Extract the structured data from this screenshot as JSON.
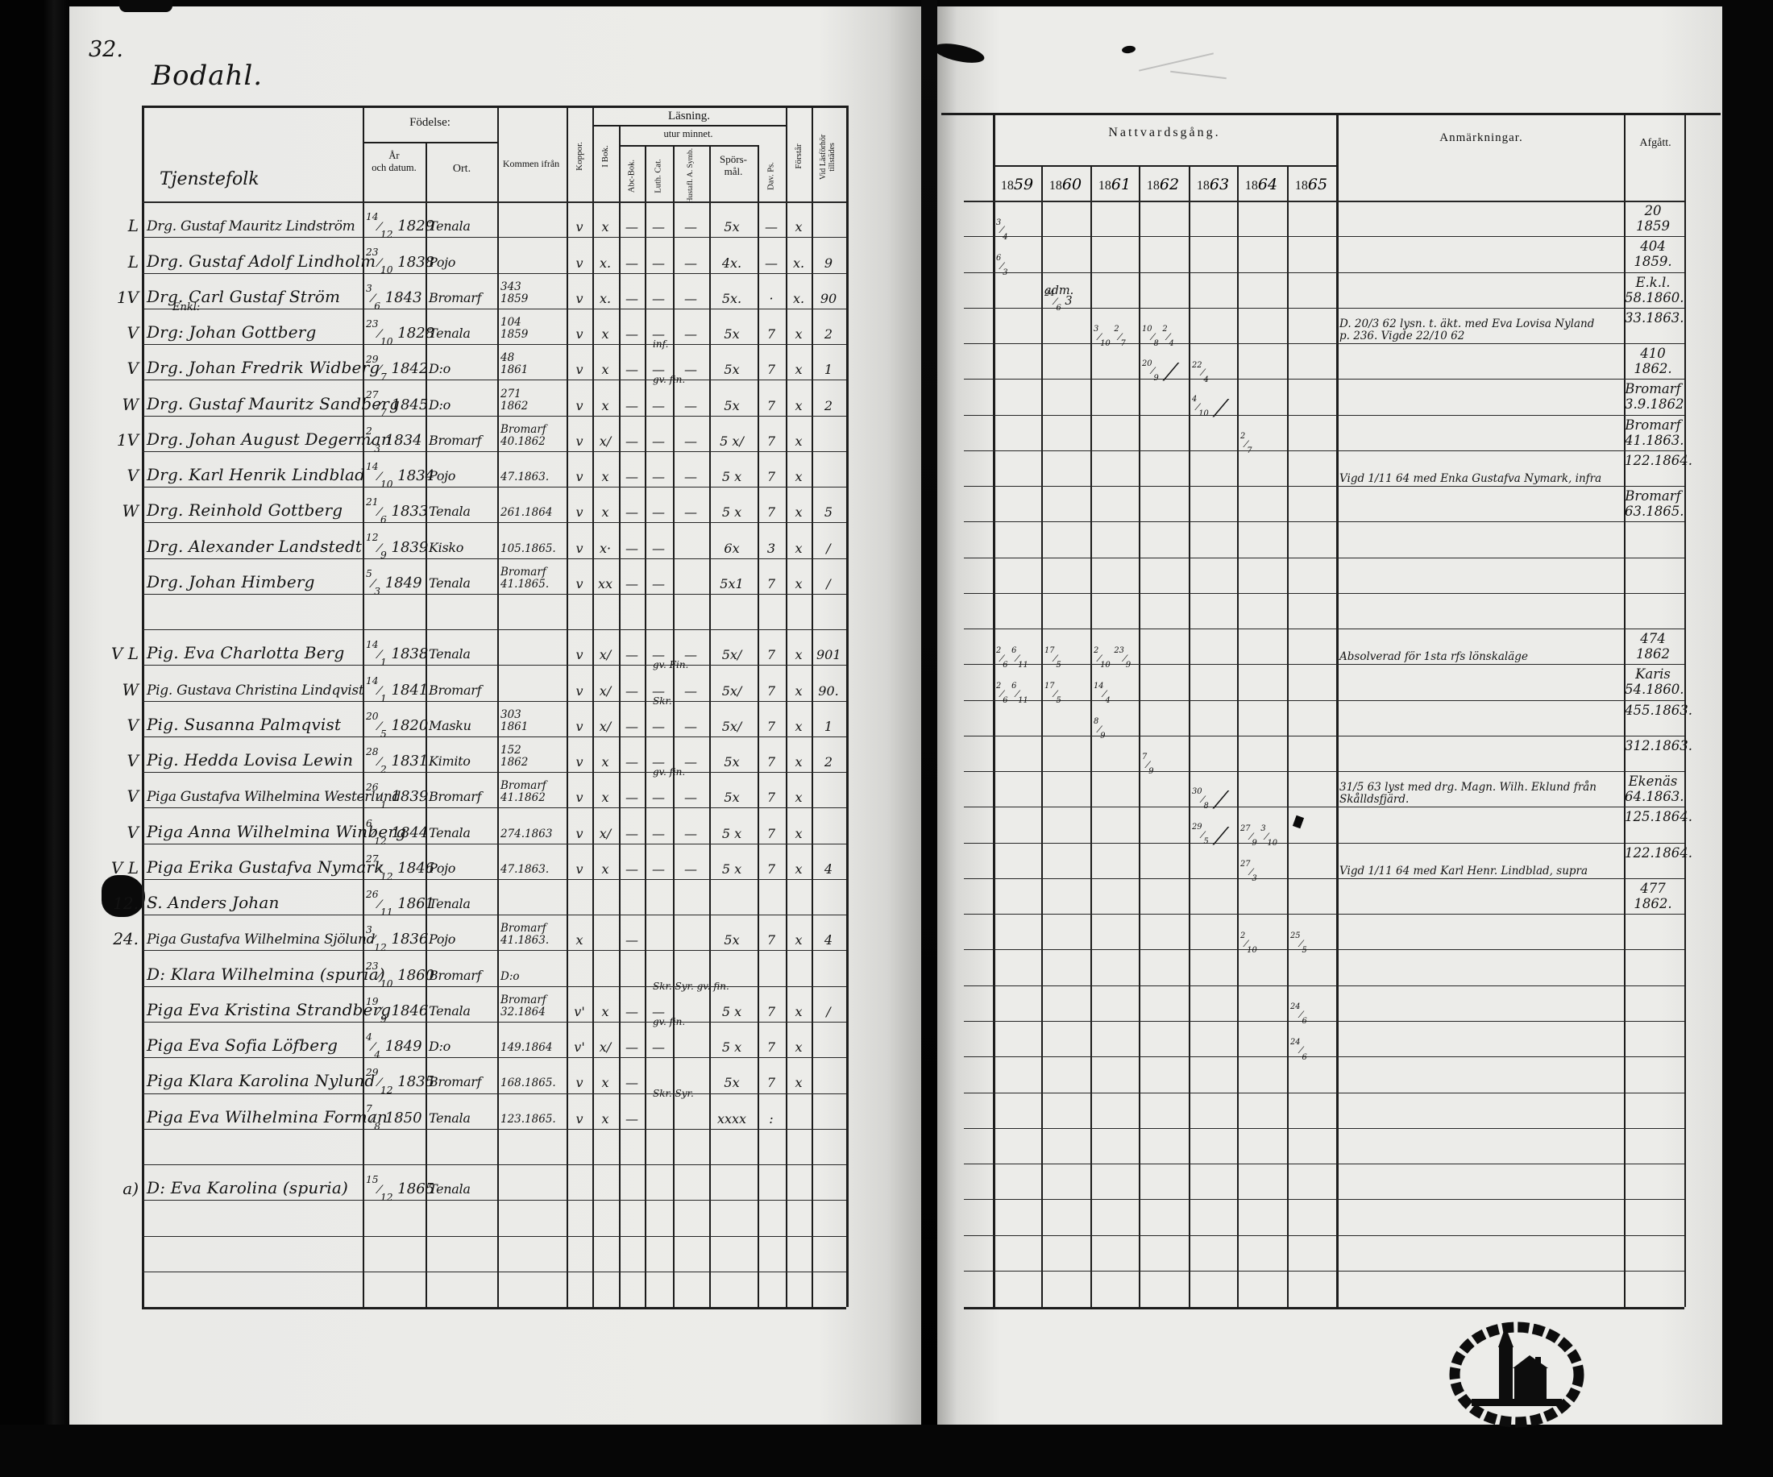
{
  "page": {
    "number": "32.",
    "title": "Bodahl.",
    "section_label": "Tjenstefolk"
  },
  "left_header": {
    "fodelse": "Födelse:",
    "ar1": "År",
    "ar2": "och datum.",
    "ort": "Ort.",
    "kommen": "Kommen ifrån",
    "koppor": "Koppor.",
    "ibok": "I Bok.",
    "lasning": "Läsning.",
    "utur": "utur minnet.",
    "abc": "Abc-Bok.",
    "cat": "Luth. Cat.",
    "symb": "Hustafl. A. Symb.",
    "spors1": "Spörs-",
    "spors2": "mål.",
    "dav": "Dav. Ps.",
    "forstar": "Förstår",
    "vid1": "Vid Läsförhör",
    "vid2": "tillstädes"
  },
  "right_header": {
    "nattvardsgang": "Nattvardsgång.",
    "years": [
      "1859",
      "1860",
      "1861",
      "1862",
      "1863",
      "1864",
      "1865"
    ],
    "anmarkningar": "Anmärkningar.",
    "afgatt": "Afgått."
  },
  "rows": [
    {
      "type": "person",
      "margin": "L",
      "name": "Drg. Gustaf Mauritz Lindström",
      "bday": "14",
      "bmon": "12",
      "byear": "1829",
      "ort": "Tenala",
      "from": [],
      "marks": {
        "kop": "v",
        "ibok": "x",
        "abc": "—",
        "cat": "—",
        "symb": "—",
        "spors": "5x",
        "dav": "—",
        "forst": "x",
        "vid": ""
      },
      "natt": [
        {
          "y": 0,
          "t": "3/4"
        }
      ],
      "anm": [],
      "afg": [
        "20",
        "1859"
      ]
    },
    {
      "type": "person",
      "margin": "L",
      "name": "Drg. Gustaf Adolf Lindholm",
      "bday": "23",
      "bmon": "10",
      "byear": "1838",
      "ort": "Pojo",
      "from": [],
      "marks": {
        "kop": "v",
        "ibok": "x.",
        "abc": "—",
        "cat": "—",
        "symb": "—",
        "spors": "4x.",
        "dav": "—",
        "forst": "x.",
        "vid": "9"
      },
      "natt": [
        {
          "y": 0,
          "t": "6/3"
        }
      ],
      "anm": [],
      "afg": [
        "404",
        "1859."
      ]
    },
    {
      "type": "person",
      "margin": "1V",
      "name": "Drg. Carl Gustaf Ström",
      "bday": "3",
      "bmon": "6",
      "byear": "1843",
      "ort": "Bromarf",
      "from": [
        "343",
        "1859"
      ],
      "marks": {
        "kop": "v",
        "ibok": "x.",
        "abc": "—",
        "cat": "—",
        "symb": "—",
        "spors": "5x.",
        "dav": "·",
        "forst": "x.",
        "vid": "90"
      },
      "natt": [
        {
          "y": 1,
          "t": "adm. 24/6 3"
        }
      ],
      "anm": [],
      "afg": [
        "E.k.l.",
        "58.1860."
      ]
    },
    {
      "type": "person",
      "margin": "V",
      "sup": "Enkl:",
      "name": "Drg: Johan Gottberg",
      "bday": "23",
      "bmon": "10",
      "byear": "1828",
      "ort": "Tenala",
      "from": [
        "104",
        "1859"
      ],
      "marks": {
        "kop": "v",
        "ibok": "x",
        "abc": "—",
        "cat": "—",
        "symb": "—",
        "spors": "5x",
        "dav": "7",
        "forst": "x",
        "vid": "2"
      },
      "natt": [
        {
          "y": 2,
          "t": "3/10 2/7"
        },
        {
          "y": 3,
          "t": "10/8 2/4"
        }
      ],
      "anm": [
        "D. 20/3 62 lysn. t. äkt. med Eva Lovisa Nyland",
        "p. 236. Vigde 22/10 62"
      ],
      "afg": [
        "33.1863."
      ]
    },
    {
      "type": "person",
      "margin": "V",
      "name": "Drg. Johan Fredrik Widberg",
      "bday": "29",
      "bmon": "7",
      "byear": "1842",
      "ort": "D:o",
      "from": [
        "48",
        "1861"
      ],
      "note": "inf.",
      "marks": {
        "kop": "v",
        "ibok": "x",
        "abc": "—",
        "cat": "—",
        "symb": "—",
        "spors": "5x",
        "dav": "7",
        "forst": "x",
        "vid": "1"
      },
      "natt": [
        {
          "y": 3,
          "t": "20/9 ⟋"
        },
        {
          "y": 4,
          "t": "22/4"
        }
      ],
      "anm": [],
      "afg": [
        "410",
        "1862."
      ]
    },
    {
      "type": "person",
      "margin": "W",
      "name": "Drg. Gustaf Mauritz Sandberg",
      "bday": "27",
      "bmon": "7",
      "byear": "1845",
      "ort": "D:o",
      "from": [
        "271",
        "1862"
      ],
      "note": "gv. fin.",
      "marks": {
        "kop": "v",
        "ibok": "x",
        "abc": "—",
        "cat": "—",
        "symb": "—",
        "spors": "5x",
        "dav": "7",
        "forst": "x",
        "vid": "2"
      },
      "natt": [
        {
          "y": 4,
          "t": "4/10 ⟋"
        }
      ],
      "anm": [],
      "afg": [
        "Bromarf",
        "3.9.1862"
      ]
    },
    {
      "type": "person",
      "margin": "1V",
      "name": "Drg. Johan August Degerman",
      "bday": "2",
      "bmon": "3",
      "byear": "1834",
      "ort": "Bromarf",
      "from": [
        "Bromarf",
        "40.1862"
      ],
      "marks": {
        "kop": "v",
        "ibok": "x/",
        "abc": "—",
        "cat": "—",
        "symb": "—",
        "spors": "5 x/",
        "dav": "7",
        "forst": "x",
        "vid": ""
      },
      "natt": [
        {
          "y": 5,
          "t": "2/7"
        }
      ],
      "anm": [],
      "afg": [
        "Bromarf",
        "41.1863."
      ]
    },
    {
      "type": "person",
      "margin": "V",
      "name": "Drg. Karl Henrik Lindblad",
      "bday": "14",
      "bmon": "10",
      "byear": "1834",
      "ort": "Pojo",
      "from": [
        "47.1863."
      ],
      "marks": {
        "kop": "v",
        "ibok": "x",
        "abc": "—",
        "cat": "—",
        "symb": "—",
        "spors": "5 x",
        "dav": "7",
        "forst": "x",
        "vid": ""
      },
      "natt": [],
      "anm": [
        "Vigd 1/11 64 med Enka Gustafva Nymark, infra"
      ],
      "afg": [
        "122.1864."
      ]
    },
    {
      "type": "person",
      "margin": "W",
      "name": "Drg. Reinhold Gottberg",
      "bday": "21",
      "bmon": "6",
      "byear": "1833",
      "ort": "Tenala",
      "from": [
        "261.1864"
      ],
      "marks": {
        "kop": "v",
        "ibok": "x",
        "abc": "—",
        "cat": "—",
        "symb": "—",
        "spors": "5 x",
        "dav": "7",
        "forst": "x",
        "vid": "5"
      },
      "natt": [],
      "anm": [],
      "afg": [
        "Bromarf",
        "63.1865."
      ]
    },
    {
      "type": "person",
      "margin": "",
      "name": "Drg. Alexander Landstedt",
      "bday": "12",
      "bmon": "9",
      "byear": "1839",
      "ort": "Kisko",
      "from": [
        "105.1865."
      ],
      "marks": {
        "kop": "v",
        "ibok": "x·",
        "abc": "—",
        "cat": "—",
        "symb": "",
        "spors": "6x",
        "dav": "3",
        "forst": "x",
        "vid": "/"
      },
      "natt": [],
      "anm": [],
      "afg": []
    },
    {
      "type": "person",
      "margin": "",
      "name": "Drg. Johan Himberg",
      "bday": "5",
      "bmon": "3",
      "byear": "1849",
      "ort": "Tenala",
      "from": [
        "Bromarf",
        "41.1865."
      ],
      "marks": {
        "kop": "v",
        "ibok": "xx",
        "abc": "—",
        "cat": "—",
        "symb": "",
        "spors": "5x1",
        "dav": "7",
        "forst": "x",
        "vid": "/"
      },
      "natt": [],
      "anm": [],
      "afg": []
    },
    {
      "type": "empty"
    },
    {
      "type": "person",
      "margin": "V L",
      "name": "Pig. Eva Charlotta Berg",
      "bday": "14",
      "bmon": "1",
      "byear": "1838",
      "ort": "Tenala",
      "from": [],
      "marks": {
        "kop": "v",
        "ibok": "x/",
        "abc": "—",
        "cat": "—",
        "symb": "—",
        "spors": "5x/",
        "dav": "7",
        "forst": "x",
        "vid": "901"
      },
      "natt": [
        {
          "y": 0,
          "t": "2/6 6/11"
        },
        {
          "y": 1,
          "t": "17/5"
        },
        {
          "y": 2,
          "t": "2/10 23/9"
        }
      ],
      "anm": [
        "Absolverad för 1sta rfs lönskaläge"
      ],
      "afg": [
        "474",
        "1862"
      ]
    },
    {
      "type": "person",
      "margin": "W",
      "name": "Pig. Gustava Christina Lindqvist",
      "bday": "14",
      "bmon": "1",
      "byear": "1841",
      "ort": "Bromarf",
      "from": [],
      "note": "gv. Fin.",
      "marks": {
        "kop": "v",
        "ibok": "x/",
        "abc": "—",
        "cat": "—",
        "symb": "—",
        "spors": "5x/",
        "dav": "7",
        "forst": "x",
        "vid": "90."
      },
      "natt": [
        {
          "y": 0,
          "t": "2/6 6/11"
        },
        {
          "y": 1,
          "t": "17/5"
        },
        {
          "y": 2,
          "t": "14/4"
        }
      ],
      "anm": [],
      "afg": [
        "Karis",
        "54.1860."
      ]
    },
    {
      "type": "person",
      "margin": "V",
      "name": "Pig. Susanna Palmqvist",
      "bday": "20",
      "bmon": "5",
      "byear": "1820",
      "ort": "Masku",
      "from": [
        "303",
        "1861"
      ],
      "note": "Skr.",
      "marks": {
        "kop": "v",
        "ibok": "x/",
        "abc": "—",
        "cat": "—",
        "symb": "—",
        "spors": "5x/",
        "dav": "7",
        "forst": "x",
        "vid": "1"
      },
      "natt": [
        {
          "y": 2,
          "t": "8/9"
        }
      ],
      "anm": [],
      "afg": [
        "455.1863."
      ]
    },
    {
      "type": "person",
      "margin": "V",
      "name": "Pig. Hedda Lovisa Lewin",
      "bday": "28",
      "bmon": "2",
      "byear": "1831",
      "ort": "Kimito",
      "from": [
        "152",
        "1862"
      ],
      "marks": {
        "kop": "v",
        "ibok": "x",
        "abc": "—",
        "cat": "—",
        "symb": "—",
        "spors": "5x",
        "dav": "7",
        "forst": "x",
        "vid": "2"
      },
      "natt": [
        {
          "y": 3,
          "t": "7/9"
        }
      ],
      "anm": [],
      "afg": [
        "312.1863."
      ]
    },
    {
      "type": "person",
      "margin": "V",
      "name": "Piga Gustafva Wilhelmina Westerlund",
      "bday": "26",
      "bmon": "1",
      "byear": "1839",
      "ort": "Bromarf",
      "from": [
        "Bromarf",
        "41.1862"
      ],
      "note": "gv. fin.",
      "marks": {
        "kop": "v",
        "ibok": "x",
        "abc": "—",
        "cat": "—",
        "symb": "—",
        "spors": "5x",
        "dav": "7",
        "forst": "x",
        "vid": ""
      },
      "natt": [
        {
          "y": 4,
          "t": "30/8 ⟋"
        }
      ],
      "anm": [
        "31/5 63 lyst med drg. Magn. Wilh. Eklund från",
        "Skålldsfjärd."
      ],
      "afg": [
        "Ekenäs",
        "64.1863."
      ]
    },
    {
      "type": "person",
      "margin": "V",
      "name": "Piga Anna Wilhelmina Winberg",
      "bday": "6",
      "bmon": "12",
      "byear": "1844",
      "ort": "Tenala",
      "from": [
        "274.1863"
      ],
      "marks": {
        "kop": "v",
        "ibok": "x/",
        "abc": "—",
        "cat": "—",
        "symb": "—",
        "spors": "5 x",
        "dav": "7",
        "forst": "x",
        "vid": ""
      },
      "natt": [
        {
          "y": 4,
          "t": "29/5 ⟋"
        },
        {
          "y": 5,
          "t": "27/9 3/10"
        }
      ],
      "anm": [],
      "afg": [
        "125.1864."
      ]
    },
    {
      "type": "person",
      "margin": "V L",
      "name": "Piga Erika Gustafva Nymark",
      "bday": "27",
      "bmon": "12",
      "byear": "1846",
      "ort": "Pojo",
      "from": [
        "47.1863."
      ],
      "marks": {
        "kop": "v",
        "ibok": "x",
        "abc": "—",
        "cat": "—",
        "symb": "—",
        "spors": "5 x",
        "dav": "7",
        "forst": "x",
        "vid": "4"
      },
      "natt": [
        {
          "y": 5,
          "t": "27/3"
        }
      ],
      "anm": [
        "Vigd 1/11 64 med Karl Henr. Lindblad, supra"
      ],
      "afg": [
        "122.1864."
      ]
    },
    {
      "type": "person",
      "margin": "12.",
      "name": "S. Anders Johan",
      "bday": "26",
      "bmon": "11",
      "byear": "1861",
      "ort": "Tenala",
      "from": [],
      "marks": {},
      "natt": [],
      "anm": [],
      "afg": [
        "477",
        "1862."
      ]
    },
    {
      "type": "person",
      "margin": "24.",
      "name": "Piga Gustafva Wilhelmina Sjölund",
      "bday": "3",
      "bmon": "12",
      "byear": "1836",
      "ort": "Pojo",
      "from": [
        "Bromarf",
        "41.1863."
      ],
      "marks": {
        "kop": "x",
        "ibok": "",
        "abc": "—",
        "cat": "",
        "symb": "",
        "spors": "5x",
        "dav": "7",
        "forst": "x",
        "vid": "4"
      },
      "natt": [
        {
          "y": 5,
          "t": "2/10"
        },
        {
          "y": 6,
          "t": "25/5"
        }
      ],
      "anm": [],
      "afg": []
    },
    {
      "type": "person",
      "margin": "",
      "name": "D: Klara Wilhelmina (spuria)",
      "bday": "23",
      "bmon": "10",
      "byear": "1860",
      "ort": "Bromarf",
      "from": [
        "D:o"
      ],
      "marks": {},
      "natt": [],
      "anm": [],
      "afg": []
    },
    {
      "type": "person",
      "margin": "",
      "name": "Piga Eva Kristina Strandberg",
      "bday": "19",
      "bmon": "9",
      "byear": "1846",
      "ort": "Tenala",
      "from": [
        "Bromarf",
        "32.1864"
      ],
      "note": "Skr. Syr. gv. fin.",
      "marks": {
        "kop": "v'",
        "ibok": "x",
        "abc": "—",
        "cat": "—",
        "symb": "",
        "spors": "5 x",
        "dav": "7",
        "forst": "x",
        "vid": "/"
      },
      "natt": [
        {
          "y": 6,
          "t": "24/6"
        }
      ],
      "anm": [],
      "afg": []
    },
    {
      "type": "person",
      "margin": "",
      "name": "Piga Eva Sofia Löfberg",
      "bday": "4",
      "bmon": "4",
      "byear": "1849",
      "ort": "D:o",
      "from": [
        "149.1864"
      ],
      "note": "gv. fin.",
      "marks": {
        "kop": "v'",
        "ibok": "x/",
        "abc": "—",
        "cat": "—",
        "symb": "",
        "spors": "5 x",
        "dav": "7",
        "forst": "x",
        "vid": ""
      },
      "natt": [
        {
          "y": 6,
          "t": "24/6"
        }
      ],
      "anm": [],
      "afg": []
    },
    {
      "type": "person",
      "margin": "",
      "name": "Piga Klara Karolina Nylund",
      "bday": "29",
      "bmon": "12",
      "byear": "1835",
      "ort": "Bromarf",
      "from": [
        "168.1865."
      ],
      "marks": {
        "kop": "v",
        "ibok": "x",
        "abc": "—",
        "cat": "",
        "symb": "",
        "spors": "5x",
        "dav": "7",
        "forst": "x",
        "vid": ""
      },
      "natt": [],
      "anm": [],
      "afg": []
    },
    {
      "type": "person",
      "margin": "",
      "name": "Piga Eva Wilhelmina Forman",
      "bday": "7",
      "bmon": "8",
      "byear": "1850",
      "ort": "Tenala",
      "from": [
        "123.1865."
      ],
      "note": "Skr. Syr.",
      "marks": {
        "kop": "v",
        "ibok": "x",
        "abc": "—",
        "cat": "",
        "symb": "",
        "spors": "xxxx",
        "dav": ":",
        "forst": "",
        "vid": ""
      },
      "natt": [],
      "anm": [],
      "afg": []
    },
    {
      "type": "empty"
    },
    {
      "type": "person",
      "margin": "a)",
      "name": "D: Eva Karolina (spuria)",
      "bday": "15",
      "bmon": "12",
      "byear": "1865",
      "ort": "Tenala",
      "from": [],
      "marks": {},
      "natt": [],
      "anm": [],
      "afg": []
    },
    {
      "type": "empty"
    },
    {
      "type": "empty"
    },
    {
      "type": "empty"
    }
  ]
}
